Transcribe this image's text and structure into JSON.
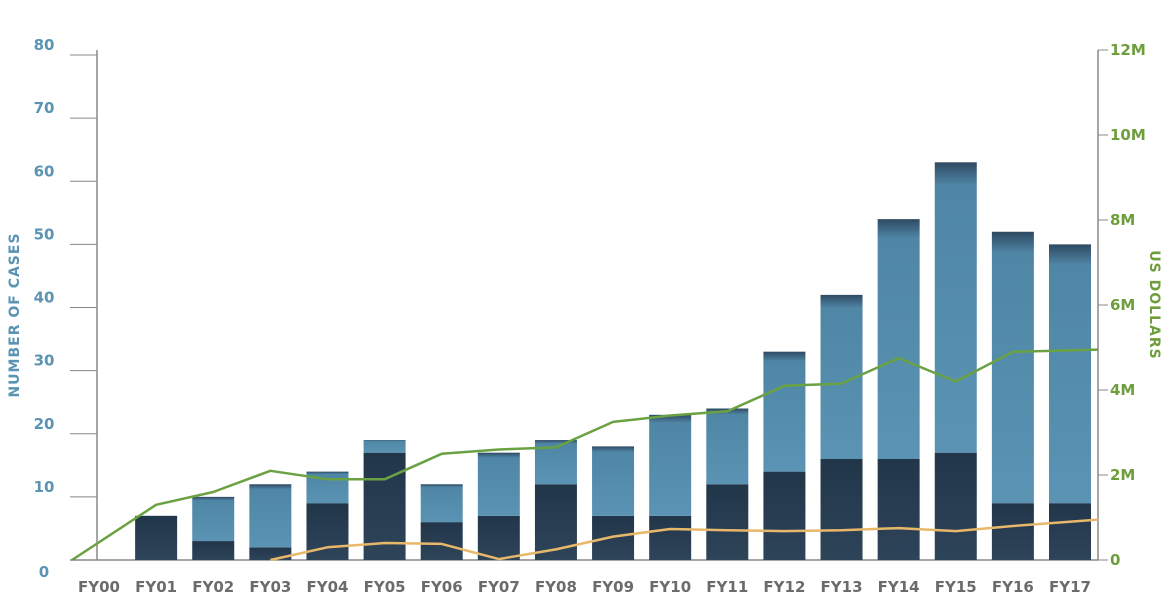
{
  "chart_data": {
    "type": "bar",
    "categories": [
      "FY00",
      "FY01",
      "FY02",
      "FY03",
      "FY04",
      "FY05",
      "FY06",
      "FY07",
      "FY08",
      "FY09",
      "FY10",
      "FY11",
      "FY12",
      "FY13",
      "FY14",
      "FY15",
      "FY16",
      "FY17"
    ],
    "ylabel": "NUMBER OF CASES",
    "y2label": "US DOLLARS",
    "ylim": [
      0,
      80
    ],
    "y2lim": [
      0,
      12000000
    ],
    "yticks": [
      "0",
      "10",
      "20",
      "30",
      "40",
      "50",
      "60",
      "70",
      "80"
    ],
    "y2ticks": [
      "0",
      "2M",
      "4M",
      "6M",
      "8M",
      "10M",
      "12M"
    ],
    "grid": false,
    "series": [
      {
        "chart": "stacked-bar",
        "axis": "left",
        "values": [
          0,
          7,
          3,
          2,
          9,
          17,
          6,
          7,
          12,
          7,
          7,
          12,
          14,
          16,
          16,
          17,
          9,
          9
        ]
      },
      {
        "chart": "stacked-bar",
        "axis": "left",
        "values": [
          0,
          0,
          7,
          10,
          5,
          2,
          6,
          10,
          7,
          11,
          16,
          12,
          19,
          26,
          38,
          46,
          43,
          41
        ]
      },
      {
        "chart": "line",
        "axis": "right",
        "values": [
          0,
          1300000,
          1600000,
          2100000,
          1900000,
          1900000,
          2500000,
          2600000,
          2650000,
          3250000,
          3400000,
          3500000,
          4100000,
          4150000,
          4750000,
          4200000,
          4900000,
          4950000
        ]
      },
      {
        "chart": "line",
        "axis": "right",
        "values": [
          null,
          null,
          null,
          0,
          300000,
          400000,
          380000,
          20000,
          250000,
          550000,
          730000,
          700000,
          680000,
          700000,
          750000,
          680000,
          800000,
          950000
        ]
      }
    ],
    "colors": {
      "bar_bottom": "#2a3e52",
      "bar_top": "#5a93b3",
      "line_total": "#6aa142",
      "line_secondary": "#e8b86a",
      "axis_left": "#5a93b3",
      "axis_right": "#6e9e3c",
      "axis_line": "#888888",
      "tick_x": "#6b6b6b"
    }
  }
}
